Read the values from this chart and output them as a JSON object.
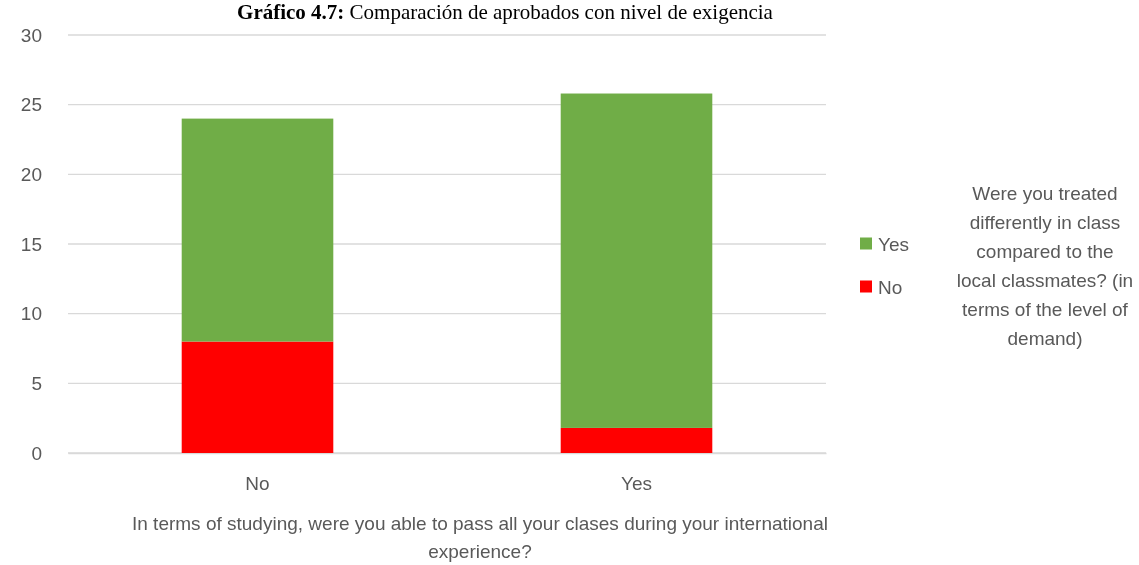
{
  "chart_data": {
    "type": "bar",
    "title": "Gráfico 4.7: Comparación de aprobados con nivel de exigencia",
    "xlabel": "In terms of studying, were you able to pass all your clases during your international experience?",
    "legend_title": "Were you treated differently in class compared to the local classmates? (in terms of the level of demand)",
    "categories": [
      "No",
      "Yes"
    ],
    "series": [
      {
        "name": "No",
        "color": "#ff0000",
        "values": [
          8,
          1.8
        ]
      },
      {
        "name": "Yes",
        "color": "#70ad47",
        "values": [
          16,
          24
        ]
      }
    ],
    "stacked": true,
    "ylim": [
      0,
      30
    ],
    "yticks": [
      0,
      5,
      10,
      15,
      20,
      25,
      30
    ],
    "grid": "y",
    "legend": "right"
  }
}
